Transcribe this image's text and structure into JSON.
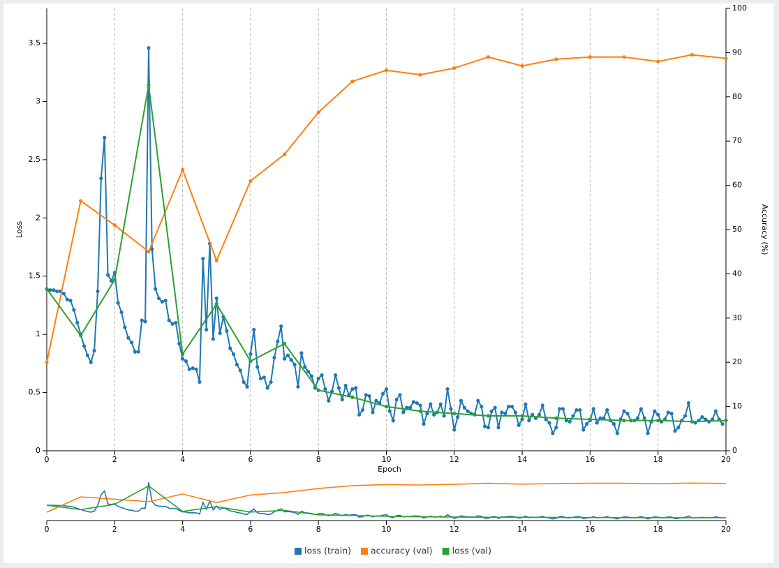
{
  "chart_data": {
    "type": "line",
    "xlabel": "Epoch",
    "ylabel": "Loss",
    "y2label": "Accuracy (%)",
    "xlim": [
      0,
      20
    ],
    "xticks": [
      0,
      2,
      4,
      6,
      8,
      10,
      12,
      14,
      16,
      18,
      20
    ],
    "ylim": [
      0,
      3.8
    ],
    "yticks": [
      0,
      0.5,
      1,
      1.5,
      2,
      2.5,
      3,
      3.5
    ],
    "y2lim": [
      0,
      100
    ],
    "y2ticks": [
      0,
      10,
      20,
      30,
      40,
      50,
      60,
      70,
      80,
      90,
      100
    ],
    "grid": true,
    "legend": "bottom",
    "series": [
      {
        "name": "loss (train)",
        "color": "#1f77b4",
        "x": [
          0,
          0.1,
          0.2,
          0.3,
          0.4,
          0.5,
          0.6,
          0.7,
          0.8,
          0.9,
          1,
          1.1,
          1.2,
          1.3,
          1.4,
          1.5,
          1.6,
          1.7,
          1.8,
          1.9,
          2,
          2.1,
          2.2,
          2.3,
          2.4,
          2.5,
          2.6,
          2.7,
          2.8,
          2.9,
          3,
          3.1,
          3.2,
          3.3,
          3.4,
          3.5,
          3.6,
          3.7,
          3.8,
          3.9,
          4,
          4.1,
          4.2,
          4.3,
          4.4,
          4.5,
          4.6,
          4.7,
          4.8,
          4.9,
          5,
          5.1,
          5.2,
          5.3,
          5.4,
          5.5,
          5.6,
          5.7,
          5.8,
          5.9,
          6,
          6.1,
          6.2,
          6.3,
          6.4,
          6.5,
          6.6,
          6.7,
          6.8,
          6.9,
          7,
          7.1,
          7.2,
          7.3,
          7.4,
          7.5,
          7.6,
          7.7,
          7.8,
          7.9,
          8,
          8.1,
          8.2,
          8.3,
          8.4,
          8.5,
          8.6,
          8.7,
          8.8,
          8.9,
          9,
          9.1,
          9.2,
          9.3,
          9.4,
          9.5,
          9.6,
          9.7,
          9.8,
          9.9,
          10,
          10.1,
          10.2,
          10.3,
          10.4,
          10.5,
          10.6,
          10.7,
          10.8,
          10.9,
          11,
          11.1,
          11.2,
          11.3,
          11.4,
          11.5,
          11.6,
          11.7,
          11.8,
          11.9,
          12,
          12.1,
          12.2,
          12.3,
          12.4,
          12.5,
          12.6,
          12.7,
          12.8,
          12.9,
          13,
          13.1,
          13.2,
          13.3,
          13.4,
          13.5,
          13.6,
          13.7,
          13.8,
          13.9,
          14,
          14.1,
          14.2,
          14.3,
          14.4,
          14.5,
          14.6,
          14.7,
          14.8,
          14.9,
          15,
          15.1,
          15.2,
          15.3,
          15.4,
          15.5,
          15.6,
          15.7,
          15.8,
          15.9,
          16,
          16.1,
          16.2,
          16.3,
          16.4,
          16.5,
          16.6,
          16.7,
          16.8,
          16.9,
          17,
          17.1,
          17.2,
          17.3,
          17.4,
          17.5,
          17.6,
          17.7,
          17.8,
          17.9,
          18,
          18.1,
          18.2,
          18.3,
          18.4,
          18.5,
          18.6,
          18.7,
          18.8,
          18.9,
          19,
          19.1,
          19.2,
          19.3,
          19.4,
          19.5,
          19.6,
          19.7,
          19.8,
          19.9
        ],
        "values": [
          1.39,
          1.38,
          1.38,
          1.37,
          1.37,
          1.35,
          1.3,
          1.29,
          1.21,
          1.1,
          1,
          0.9,
          0.82,
          0.76,
          0.86,
          1.37,
          2.34,
          2.69,
          1.51,
          1.46,
          1.53,
          1.27,
          1.19,
          1.06,
          0.97,
          0.93,
          0.85,
          0.85,
          1.12,
          1.11,
          3.46,
          1.73,
          1.39,
          1.31,
          1.28,
          1.29,
          1.12,
          1.09,
          1.1,
          0.92,
          0.79,
          0.77,
          0.7,
          0.71,
          0.7,
          0.59,
          1.65,
          1.04,
          1.78,
          0.96,
          1.31,
          1.01,
          1.15,
          1.03,
          0.88,
          0.83,
          0.74,
          0.69,
          0.59,
          0.55,
          0.83,
          1.04,
          0.72,
          0.62,
          0.63,
          0.54,
          0.59,
          0.8,
          0.94,
          1.07,
          0.79,
          0.82,
          0.78,
          0.74,
          0.55,
          0.84,
          0.72,
          0.68,
          0.64,
          0.54,
          0.62,
          0.65,
          0.53,
          0.43,
          0.51,
          0.65,
          0.54,
          0.44,
          0.56,
          0.48,
          0.53,
          0.54,
          0.31,
          0.35,
          0.48,
          0.47,
          0.33,
          0.43,
          0.41,
          0.49,
          0.53,
          0.34,
          0.26,
          0.44,
          0.48,
          0.33,
          0.37,
          0.37,
          0.42,
          0.41,
          0.39,
          0.23,
          0.32,
          0.4,
          0.31,
          0.33,
          0.4,
          0.3,
          0.53,
          0.36,
          0.18,
          0.29,
          0.43,
          0.37,
          0.34,
          0.32,
          0.31,
          0.43,
          0.38,
          0.21,
          0.2,
          0.34,
          0.37,
          0.2,
          0.33,
          0.32,
          0.38,
          0.38,
          0.33,
          0.22,
          0.27,
          0.4,
          0.26,
          0.31,
          0.28,
          0.31,
          0.39,
          0.27,
          0.24,
          0.15,
          0.2,
          0.36,
          0.36,
          0.26,
          0.25,
          0.3,
          0.35,
          0.35,
          0.18,
          0.23,
          0.26,
          0.36,
          0.24,
          0.28,
          0.28,
          0.35,
          0.26,
          0.23,
          0.15,
          0.27,
          0.34,
          0.32,
          0.26,
          0.26,
          0.28,
          0.36,
          0.28,
          0.15,
          0.25,
          0.34,
          0.31,
          0.25,
          0.27,
          0.33,
          0.32,
          0.17,
          0.2,
          0.26,
          0.3,
          0.41,
          0.25,
          0.24,
          0.26,
          0.29,
          0.27,
          0.25,
          0.27,
          0.34,
          0.27,
          0.23
        ]
      },
      {
        "name": "accuracy (val)",
        "color": "#ff7f0e",
        "axis": "y2",
        "x": [
          0,
          1,
          2,
          3,
          4,
          5,
          6,
          7,
          8,
          9,
          10,
          11,
          12,
          13,
          14,
          15,
          16,
          17,
          18,
          19,
          20
        ],
        "values": [
          20,
          56.5,
          51,
          45,
          63.5,
          43,
          61,
          67,
          76.5,
          83.5,
          86,
          85,
          86.5,
          89,
          87,
          88.5,
          89,
          89,
          88,
          89.5,
          88.7
        ]
      },
      {
        "name": "loss (val)",
        "color": "#2ca02c",
        "x": [
          0,
          1,
          2,
          3,
          4,
          5,
          6,
          7,
          8,
          9,
          10,
          11,
          12,
          13,
          14,
          15,
          16,
          17,
          18,
          19,
          20
        ],
        "values": [
          1.39,
          0.99,
          1.47,
          3.14,
          0.83,
          1.26,
          0.77,
          0.92,
          0.52,
          0.46,
          0.38,
          0.34,
          0.32,
          0.3,
          0.3,
          0.28,
          0.27,
          0.26,
          0.26,
          0.25,
          0.26
        ]
      }
    ]
  }
}
